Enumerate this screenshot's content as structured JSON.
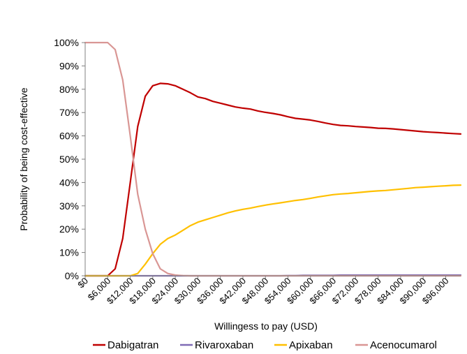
{
  "chart_data": {
    "type": "line",
    "title": "",
    "xlabel": "Willingess to pay (USD)",
    "ylabel": "Probability of being cost-effective",
    "xlim": [
      0,
      100000
    ],
    "ylim": [
      0,
      100
    ],
    "y_ticks": [
      0,
      10,
      20,
      30,
      40,
      50,
      60,
      70,
      80,
      90,
      100
    ],
    "y_tick_labels": [
      "0%",
      "10%",
      "20%",
      "30%",
      "40%",
      "50%",
      "60%",
      "70%",
      "80%",
      "90%",
      "100%"
    ],
    "x_tick_labels": [
      "$0",
      "$6,000",
      "$12,000",
      "$18,000",
      "$24,000",
      "$30,000",
      "$36,000",
      "$42,000",
      "$48,000",
      "$54,000",
      "$60,000",
      "$66,000",
      "$72,000",
      "$78,000",
      "$84,000",
      "$90,000",
      "$96,000"
    ],
    "x_tick_values": [
      0,
      6000,
      12000,
      18000,
      24000,
      30000,
      36000,
      42000,
      48000,
      54000,
      60000,
      66000,
      72000,
      78000,
      84000,
      90000,
      96000
    ],
    "grid": false,
    "legend_position": "bottom",
    "x": [
      0,
      2000,
      4000,
      6000,
      8000,
      10000,
      12000,
      14000,
      16000,
      18000,
      20000,
      22000,
      24000,
      26000,
      28000,
      30000,
      32000,
      34000,
      36000,
      38000,
      40000,
      42000,
      44000,
      46000,
      48000,
      50000,
      52000,
      54000,
      56000,
      58000,
      60000,
      62000,
      64000,
      66000,
      68000,
      70000,
      72000,
      74000,
      76000,
      78000,
      80000,
      82000,
      84000,
      86000,
      88000,
      90000,
      92000,
      94000,
      96000,
      98000,
      100000
    ],
    "series": [
      {
        "name": "Dabigatran",
        "color": "#C00000",
        "values": [
          0,
          0,
          0,
          0,
          3,
          16,
          40,
          64,
          77,
          81.5,
          82.5,
          82.3,
          81.5,
          80,
          78.5,
          76.7,
          76,
          74.8,
          74,
          73.2,
          72.4,
          71.9,
          71.5,
          70.7,
          70.1,
          69.6,
          69,
          68.2,
          67.5,
          67.2,
          66.8,
          66.2,
          65.5,
          64.9,
          64.5,
          64.3,
          64,
          63.8,
          63.6,
          63.3,
          63.2,
          63,
          62.7,
          62.4,
          62.1,
          61.8,
          61.6,
          61.4,
          61.2,
          61,
          60.8
        ]
      },
      {
        "name": "Rivaroxaban",
        "color": "#7F6BB5",
        "values": [
          0,
          0,
          0,
          0,
          0,
          0,
          0,
          0,
          0,
          0,
          0,
          0,
          0,
          0,
          0,
          0,
          0,
          0,
          0,
          0,
          0,
          0,
          0,
          0,
          0,
          0,
          0,
          0.1,
          0.1,
          0.2,
          0.2,
          0.2,
          0.2,
          0.2,
          0.3,
          0.3,
          0.3,
          0.3,
          0.3,
          0.3,
          0.3,
          0.3,
          0.3,
          0.3,
          0.3,
          0.3,
          0.3,
          0.3,
          0.3,
          0.3,
          0.3
        ]
      },
      {
        "name": "Apixaban",
        "color": "#FFC000",
        "values": [
          0,
          0,
          0,
          0,
          0,
          0,
          0,
          1,
          5,
          9.5,
          13.5,
          16,
          17.5,
          19.5,
          21.5,
          23,
          24,
          25,
          26,
          27,
          27.8,
          28.5,
          29,
          29.7,
          30.3,
          30.8,
          31.3,
          31.8,
          32.3,
          32.7,
          33.2,
          33.8,
          34.3,
          34.8,
          35.1,
          35.3,
          35.6,
          35.9,
          36.2,
          36.4,
          36.6,
          36.9,
          37.2,
          37.5,
          37.8,
          38,
          38.2,
          38.4,
          38.6,
          38.8,
          38.9
        ]
      },
      {
        "name": "Acenocumarol",
        "color": "#D99694",
        "values": [
          100,
          100,
          100,
          100,
          97,
          84,
          60,
          35,
          20,
          9.5,
          3,
          1,
          0.3,
          0.1,
          0,
          0,
          0,
          0,
          0,
          0,
          0,
          0,
          0,
          0,
          0,
          0,
          0,
          0,
          0,
          0,
          0,
          0,
          0,
          0,
          0,
          0,
          0,
          0,
          0,
          0,
          0,
          0,
          0,
          0,
          0,
          0,
          0,
          0,
          0,
          0,
          0
        ]
      }
    ]
  }
}
